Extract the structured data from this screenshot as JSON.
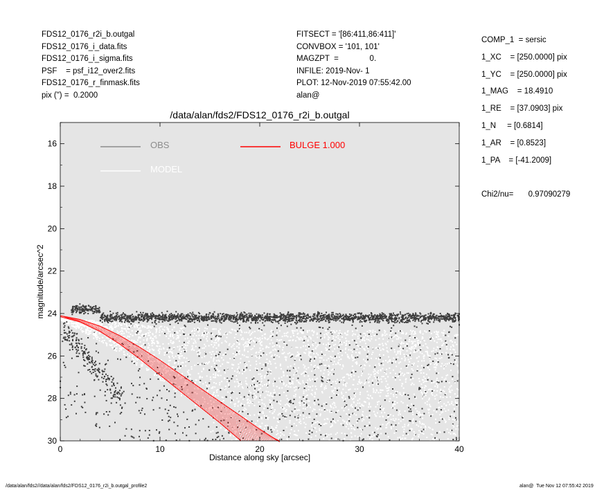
{
  "header_left": [
    "FDS12_0176_r2i_b.outgal",
    "FDS12_0176_i_data.fits",
    "FDS12_0176_i_sigma.fits",
    "PSF    = psf_i12_over2.fits",
    "FDS12_0176_r_finmask.fits",
    "pix (\") =  0.2000"
  ],
  "header_mid": [
    "FITSECT = '[86:411,86:411]'",
    "CONVBOX = '101, 101'",
    "MAGZPT  =              0.",
    "INFILE: 2019-Nov- 1",
    "PLOT: 12-Nov-2019 07:55:42.00",
    "alan@"
  ],
  "params": [
    "COMP_1  = sersic",
    "1_XC    = [250.0000] pix",
    "1_YC    = [250.0000] pix",
    "1_MAG    = 18.4910",
    "1_RE    = [37.0903] pix",
    "1_N     = [0.6814]",
    "1_AR    = [0.8523]",
    "1_PA    = [-41.2009]"
  ],
  "chi2": {
    "label": "Chi2/nu=",
    "value": "0.97090279"
  },
  "footer": {
    "left": "/data/alan/fds2//data/alan/fds2/FDS12_0176_r2i_b.outgal_profile2",
    "right": "alan@  Tue Nov 12 07:55:42 2019"
  },
  "colors": {
    "plot_bg": "#e5e5e5",
    "obs": "#3d3d3d",
    "model": "#ffffff",
    "bulge": "#ff0000",
    "legend_obs": "#8c8c8c"
  },
  "chart_data": {
    "type": "scatter",
    "title": "/data/alan/fds2/FDS12_0176_r2i_b.outgal",
    "xlabel": "Distance along sky [arcsec]",
    "ylabel": "magnitude/arcsec^2",
    "xlim": [
      0,
      40
    ],
    "ylim": [
      30,
      15
    ],
    "y_inverted": true,
    "grid": false,
    "xticks": [
      0,
      10,
      20,
      30,
      40
    ],
    "yticks": [
      16,
      18,
      20,
      22,
      24,
      26,
      28,
      30
    ],
    "legend": {
      "placement": "top-left",
      "obs_label": "OBS",
      "model_label": "MODEL",
      "bulge_label": "BULGE  1.000"
    },
    "series": [
      {
        "name": "OBS",
        "kind": "points",
        "description_points": "dense upper band near 24.0 mag (23.5-24.8) across 0-40 arcsec, plus sparse scatter from 24 to 30 mag",
        "band_center": 24.2,
        "band_halfwidth": 0.35,
        "band_x": [
          1,
          40
        ]
      },
      {
        "name": "MODEL",
        "kind": "points",
        "fan_top": [
          [
            0,
            24.2
          ],
          [
            10,
            24.6
          ],
          [
            20,
            24.8
          ],
          [
            40,
            24.8
          ]
        ],
        "fan_bottom": [
          [
            0,
            24.3
          ],
          [
            5,
            25.6
          ],
          [
            10,
            27.2
          ],
          [
            15,
            28.8
          ],
          [
            17,
            30
          ]
        ]
      },
      {
        "name": "BULGE  1.000",
        "kind": "line-band",
        "upper": [
          [
            0,
            24.1
          ],
          [
            2,
            24.28
          ],
          [
            4,
            24.6
          ],
          [
            6,
            25.05
          ],
          [
            8,
            25.6
          ],
          [
            10,
            26.2
          ],
          [
            12,
            26.85
          ],
          [
            14,
            27.5
          ],
          [
            16,
            28.15
          ],
          [
            18,
            28.8
          ],
          [
            20,
            29.45
          ],
          [
            21,
            29.75
          ],
          [
            22,
            30.05
          ]
        ],
        "lower": [
          [
            0,
            24.15
          ],
          [
            2,
            24.4
          ],
          [
            4,
            24.85
          ],
          [
            6,
            25.45
          ],
          [
            8,
            26.15
          ],
          [
            10,
            26.9
          ],
          [
            12,
            27.65
          ],
          [
            14,
            28.4
          ],
          [
            16,
            29.15
          ],
          [
            17,
            29.55
          ],
          [
            18,
            29.95
          ],
          [
            18.1,
            30.0
          ]
        ]
      }
    ]
  }
}
